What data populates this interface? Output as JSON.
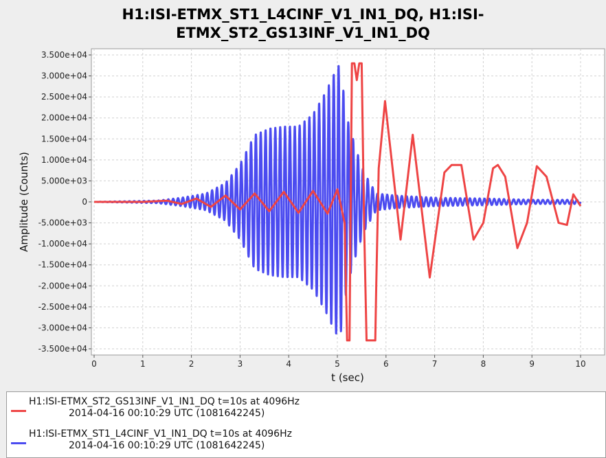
{
  "chart_data": {
    "type": "line",
    "title": "H1:ISI-ETMX_ST1_L4CINF_V1_IN1_DQ, H1:ISI-ETMX_ST2_GS13INF_V1_IN1_DQ",
    "title_lines": [
      "H1:ISI-ETMX_ST1_L4CINF_V1_IN1_DQ, H1:ISI-",
      "ETMX_ST2_GS13INF_V1_IN1_DQ"
    ],
    "xlabel": "t (sec)",
    "ylabel": "Amplitude (Counts)",
    "xlim": [
      0,
      10.5
    ],
    "ylim": [
      -36000,
      35000
    ],
    "x_ticks": [
      "0",
      "1",
      "2",
      "3",
      "4",
      "5",
      "6",
      "7",
      "8",
      "9",
      "10"
    ],
    "y_ticks": [
      "3.500e+04",
      "3.000e+04",
      "2.500e+04",
      "2.000e+04",
      "1.500e+04",
      "1.000e+04",
      "5.000e+03",
      "0",
      "-5.000e+03",
      "-1.000e+04",
      "-1.500e+04",
      "-2.000e+04",
      "-2.500e+04",
      "-3.000e+04",
      "-3.500e+04"
    ],
    "y_tick_values": [
      35000,
      30000,
      25000,
      20000,
      15000,
      10000,
      5000,
      0,
      -5000,
      -10000,
      -15000,
      -20000,
      -25000,
      -30000,
      -35000
    ],
    "grid": true,
    "legend_position": "bottom",
    "series": [
      {
        "name": "H1:ISI-ETMX_ST2_GS13INF_V1_IN1_DQ",
        "legend_line1": "H1:ISI-ETMX_ST2_GS13INF_V1_IN1_DQ t=10s at 4096Hz",
        "legend_line2": "2014-04-16 00:10:29 UTC (1081642245)",
        "color": "#ee4444",
        "x": [
          0,
          1.0,
          1.5,
          1.8,
          2.1,
          2.4,
          2.7,
          3.0,
          3.3,
          3.6,
          3.9,
          4.2,
          4.5,
          4.8,
          5.0,
          5.15,
          5.2,
          5.25,
          5.3,
          5.35,
          5.4,
          5.45,
          5.5,
          5.55,
          5.6,
          5.62,
          5.78,
          5.8,
          5.85,
          5.98,
          6.3,
          6.55,
          6.9,
          7.2,
          7.35,
          7.55,
          7.8,
          8.0,
          8.2,
          8.3,
          8.45,
          8.7,
          8.9,
          9.1,
          9.3,
          9.55,
          9.72,
          9.85,
          10.0
        ],
        "y": [
          0,
          0,
          300,
          -500,
          800,
          -1200,
          1500,
          -1800,
          2000,
          -2200,
          2400,
          -2600,
          2600,
          -2800,
          3000,
          -5000,
          -33000,
          -33000,
          33000,
          33000,
          29000,
          33000,
          33000,
          -5000,
          -33000,
          -33000,
          -33000,
          -20000,
          8000,
          24000,
          -9000,
          16000,
          -18000,
          7000,
          8800,
          8800,
          -9000,
          -5000,
          8000,
          8800,
          6000,
          -11000,
          -5000,
          8500,
          6000,
          -5000,
          -5500,
          1800,
          -1000
        ]
      },
      {
        "name": "H1:ISI-ETMX_ST1_L4CINF_V1_IN1_DQ",
        "legend_line1": "H1:ISI-ETMX_ST1_L4CINF_V1_IN1_DQ t=10s at 4096Hz",
        "legend_line2": "2014-04-16 00:10:29 UTC (1081642245)",
        "color": "#4b4bf0",
        "cycle_period": 0.1,
        "burst_times": [
          0.0,
          1.3,
          1.8,
          2.3,
          2.7,
          3.0,
          3.3,
          3.6,
          3.9,
          4.2,
          4.5,
          4.75,
          4.95,
          5.05,
          5.2,
          5.4,
          5.55,
          5.8,
          6.2,
          7.0,
          8.0,
          9.0,
          10.0
        ],
        "burst_envelope": [
          0,
          300,
          1000,
          2000,
          4500,
          9000,
          16000,
          17500,
          18000,
          18000,
          21000,
          26000,
          31000,
          33000,
          20000,
          12000,
          7000,
          2000,
          1500,
          1000,
          800,
          500,
          500
        ]
      }
    ]
  }
}
